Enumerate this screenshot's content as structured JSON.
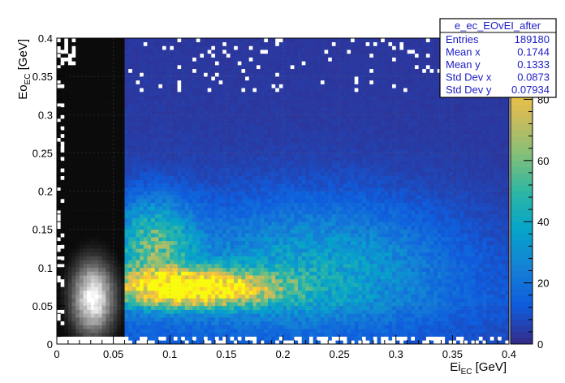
{
  "chart_data": {
    "type": "heatmap",
    "histogram_name": "e_ec_EOvEI_after",
    "xlabel": "Ei",
    "xlabel_sub": "EC",
    "xlabel_unit": "[GeV]",
    "ylabel": "Eo",
    "ylabel_sub": "EC",
    "ylabel_unit": "[GeV]",
    "xlim": [
      0,
      0.4
    ],
    "ylim": [
      0,
      0.4
    ],
    "x_ticks": [
      "0",
      "0.05",
      "0.1",
      "0.15",
      "0.2",
      "0.25",
      "0.3",
      "0.35",
      "0.4"
    ],
    "y_ticks": [
      "0",
      "0.05",
      "0.1",
      "0.15",
      "0.2",
      "0.25",
      "0.3",
      "0.35",
      "0.4"
    ],
    "zlim": [
      0,
      100
    ],
    "z_ticks": [
      "0",
      "20",
      "40",
      "60",
      "80",
      "100"
    ],
    "z_ticks_printed": [
      "0",
      "20",
      "40",
      "60",
      "80"
    ],
    "nbins_x": 120,
    "nbins_y": 80,
    "grid": true,
    "colorscale": [
      "#352a87",
      "#0f5cdd",
      "#1481d6",
      "#06a4ca",
      "#2eb7a4",
      "#87bf77",
      "#d1bb59",
      "#fec832",
      "#f9fb0e"
    ],
    "grayscale_region": {
      "x_range": [
        0,
        0.06
      ],
      "peak": [
        0.032,
        0.06
      ],
      "description_colors": [
        "#0b0b0b",
        "#ffffff"
      ]
    },
    "features": [
      {
        "name": "dense band",
        "x_range": [
          0.06,
          0.2
        ],
        "y_range": [
          0.05,
          0.1
        ],
        "peak_value": 100
      },
      {
        "name": "secondary arm",
        "x_range": [
          0.06,
          0.15
        ],
        "y_range": [
          0.1,
          0.2
        ],
        "peak_value": 60
      },
      {
        "name": "diffuse floor",
        "x_range": [
          0.06,
          0.4
        ],
        "y_range": [
          0.0,
          0.4
        ],
        "peak_value": 20
      }
    ],
    "stats": {
      "title": "e_ec_EOvEI_after",
      "rows": [
        {
          "label": "Entries",
          "value": "189180"
        },
        {
          "label": "Mean x",
          "value": "0.1744"
        },
        {
          "label": "Mean y",
          "value": "0.1333"
        },
        {
          "label": "Std Dev x",
          "value": "0.0873"
        },
        {
          "label": "Std Dev y",
          "value": "0.07934"
        }
      ]
    }
  }
}
